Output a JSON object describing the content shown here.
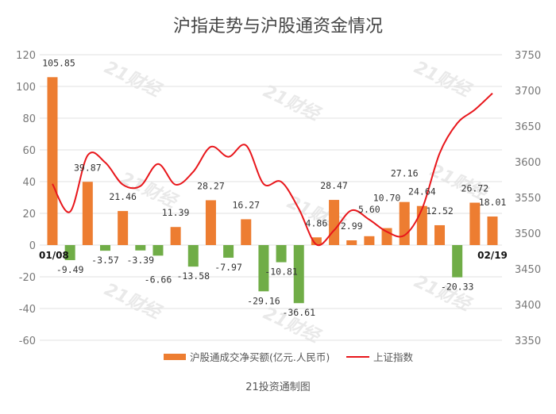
{
  "chart_data": {
    "type": "bar+line",
    "title": "沪指走势与沪股通资金情况",
    "source": "21投资通制图",
    "watermark": "21财经",
    "x_labels_shown": [
      "01/08",
      "02/19"
    ],
    "bar_series": {
      "name": "沪股通成交净买额(亿元.人民币)",
      "color": "#ED7D31",
      "negative_color": "#70AD47",
      "values": [
        105.85,
        -9.49,
        39.87,
        -3.57,
        21.46,
        -3.39,
        -6.66,
        11.39,
        -13.58,
        28.27,
        -7.97,
        16.27,
        -29.16,
        -10.81,
        -36.61,
        4.86,
        28.47,
        2.99,
        5.6,
        10.7,
        27.16,
        24.64,
        12.52,
        -20.33,
        26.72,
        18.01
      ],
      "labels": [
        "105.85",
        "-9.49",
        "39.87",
        "-3.57",
        "21.46",
        "-3.39",
        "-6.66",
        "11.39",
        "-13.58",
        "28.27",
        "-7.97",
        "16.27",
        "-29.16",
        "-10.81",
        "-36.61",
        "4.86",
        "28.47",
        "2.99",
        "5.60",
        "10.70",
        "27.16",
        "24.64",
        "12.52",
        "-20.33",
        "26.72",
        "18.01"
      ]
    },
    "line_series": {
      "name": "上证指数",
      "color": "#E8161B",
      "values": [
        3569,
        3530,
        3609,
        3599,
        3568,
        3566,
        3597,
        3568,
        3586,
        3621,
        3607,
        3623,
        3569,
        3572,
        3534,
        3484,
        3504,
        3532,
        3519,
        3502,
        3497,
        3534,
        3612,
        3654,
        3673,
        3696
      ]
    },
    "y_left": {
      "min": -60,
      "max": 120,
      "step": 20,
      "ticks": [
        "120",
        "100",
        "80",
        "60",
        "40",
        "20",
        "0",
        "-20",
        "-40",
        "-60"
      ]
    },
    "y_right": {
      "min": 3350,
      "max": 3750,
      "step": 50,
      "ticks": [
        "3750",
        "3700",
        "3650",
        "3600",
        "3550",
        "3500",
        "3450",
        "3400",
        "3350"
      ]
    },
    "grid": true,
    "legend_position": "bottom"
  }
}
